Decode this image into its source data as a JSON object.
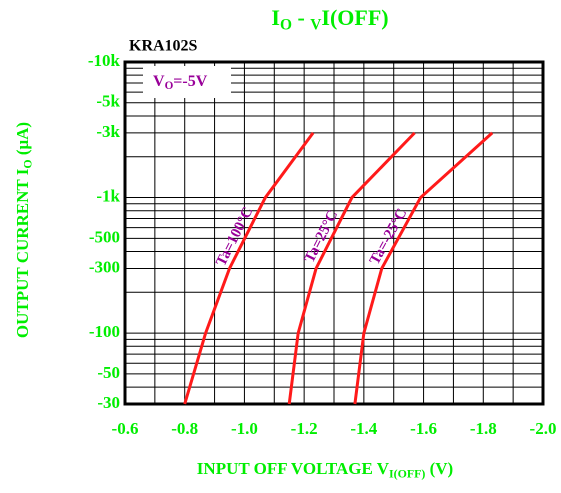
{
  "chart_data": {
    "type": "line",
    "title": [
      "I",
      "O",
      " - ",
      "V",
      "I(OFF)"
    ],
    "subtitle": "KRA102S",
    "annotation": [
      "V",
      "O",
      "=-5V"
    ],
    "xlabel": [
      "INPUT OFF VOLTAGE V",
      "I(OFF)",
      " (V)"
    ],
    "ylabel": [
      "OUTPUT CURRENT I",
      "O",
      " (μA)"
    ],
    "log_y": true,
    "grid": true,
    "xlim": [
      -0.6,
      -2.0
    ],
    "xticks": [
      -0.6,
      -0.8,
      {
        "value": -1,
        "label": "-1.0"
      },
      -1.2,
      -1.4,
      -1.6,
      -1.8,
      {
        "value": -2,
        "label": "-2.0"
      }
    ],
    "xminorticks": [
      -0.7,
      -0.9,
      -1.1,
      -1.3,
      -1.5,
      -1.7,
      -1.9
    ],
    "ylim": [
      -30,
      -10000
    ],
    "yticks": [
      {
        "value": -10000,
        "label": "-10k"
      },
      {
        "value": -5000,
        "label": "-5k"
      },
      {
        "value": -3000,
        "label": "-3k"
      },
      {
        "value": -1000,
        "label": "-1k"
      },
      -500,
      -300,
      -100,
      -50,
      -30
    ],
    "yminorticks": [
      -40,
      -60,
      -70,
      -80,
      -90,
      -200,
      -400,
      -600,
      -700,
      -800,
      -900,
      -2000,
      -4000,
      -6000,
      -7000,
      -8000,
      -9000
    ],
    "series": [
      {
        "name": "Ta=100°C",
        "color": "#ff1a1a",
        "x": [
          -0.8,
          -0.87,
          -0.95,
          -1.07,
          -1.23
        ],
        "values": [
          -30,
          -100,
          -300,
          -1000,
          -3000
        ]
      },
      {
        "name": "Ta=25°C",
        "color": "#ff1a1a",
        "x": [
          -1.15,
          -1.18,
          -1.24,
          -1.36,
          -1.57
        ],
        "values": [
          -30,
          -100,
          -300,
          -1000,
          -3000
        ]
      },
      {
        "name": "Ta=-25°C",
        "color": "#ff1a1a",
        "x": [
          -1.37,
          -1.4,
          -1.46,
          -1.59,
          -1.83
        ],
        "values": [
          -30,
          -100,
          -300,
          -1000,
          -3000
        ]
      }
    ]
  }
}
